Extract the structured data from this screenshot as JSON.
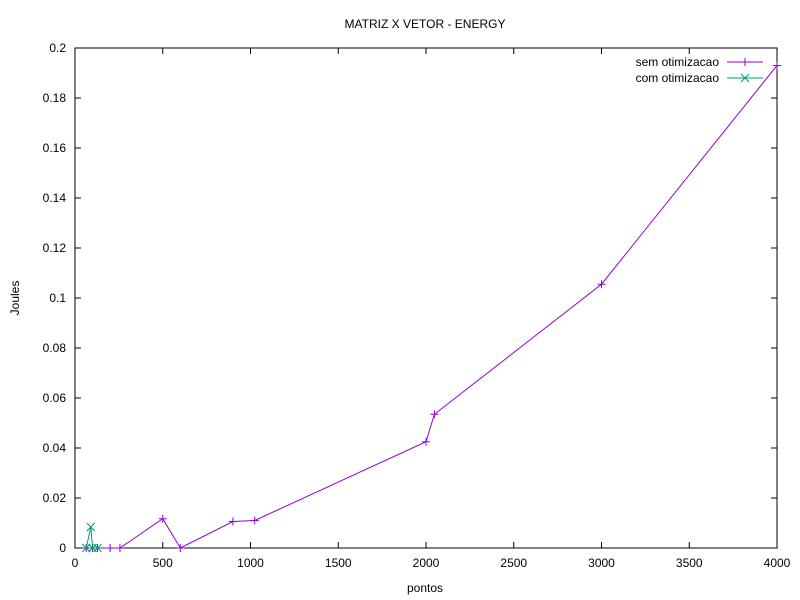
{
  "chart_data": {
    "type": "line",
    "title": "MATRIZ X VETOR - ENERGY",
    "xlabel": "pontos",
    "ylabel": "Joules",
    "xlim": [
      0,
      4000
    ],
    "ylim": [
      0,
      0.2
    ],
    "x_ticks": [
      0,
      500,
      1000,
      1500,
      2000,
      2500,
      3000,
      3500,
      4000
    ],
    "x_tick_labels": [
      "0",
      "500",
      "1000",
      "1500",
      "2000",
      "2500",
      "3000",
      "3500",
      "4000"
    ],
    "y_ticks": [
      0,
      0.02,
      0.04,
      0.06,
      0.08,
      0.1,
      0.12,
      0.14,
      0.16,
      0.18,
      0.2
    ],
    "y_tick_labels": [
      "0",
      "0.02",
      "0.04",
      "0.06",
      "0.08",
      "0.1",
      "0.12",
      "0.14",
      "0.16",
      "0.18",
      "0.2"
    ],
    "grid": false,
    "legend_position": "top-right",
    "series": [
      {
        "name": "sem otimizacao",
        "color": "#9400d3",
        "marker": "plus",
        "x": [
          64,
          100,
          128,
          200,
          256,
          500,
          600,
          900,
          1024,
          2000,
          2048,
          3000,
          4000
        ],
        "y": [
          0,
          0,
          0,
          0,
          0,
          0.0117,
          0,
          0.0106,
          0.011,
          0.0425,
          0.0535,
          0.1055,
          0.193
        ]
      },
      {
        "name": "com otimizacao",
        "color": "#009e73",
        "marker": "cross",
        "x": [
          64,
          90,
          100,
          128
        ],
        "y": [
          0,
          0.0084,
          0,
          0
        ]
      }
    ]
  }
}
